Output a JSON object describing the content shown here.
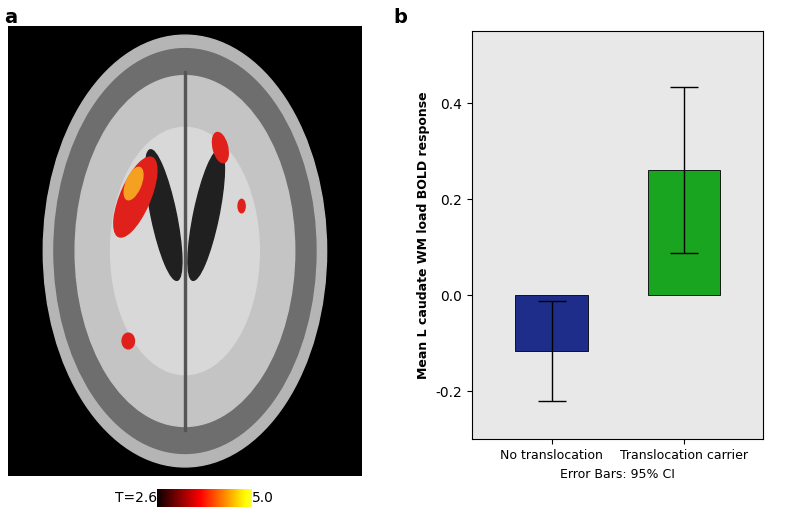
{
  "panel_a": {
    "label": "a",
    "colorbar": {
      "range": [
        2.6,
        5.0
      ],
      "ticks": [
        {
          "value": 2.6,
          "label": "T=2.6"
        },
        {
          "value": 5.0,
          "label": "5.0"
        }
      ]
    }
  },
  "chart_data": {
    "type": "bar",
    "panel_label": "b",
    "categories": [
      "No translocation",
      "Translocation carrier"
    ],
    "values": [
      -0.115,
      0.262
    ],
    "ci_lower": [
      -0.22,
      0.088
    ],
    "ci_upper": [
      -0.012,
      0.435
    ],
    "colors": [
      "#1f2d8a",
      "#19a51f"
    ],
    "y_label": "Mean L caudate WM load BOLD response",
    "x_label": "Error Bars: 95% CI",
    "ylim": [
      -0.3,
      0.55
    ],
    "yticks": [
      -0.2,
      0.0,
      0.2,
      0.4
    ],
    "grid": false
  }
}
